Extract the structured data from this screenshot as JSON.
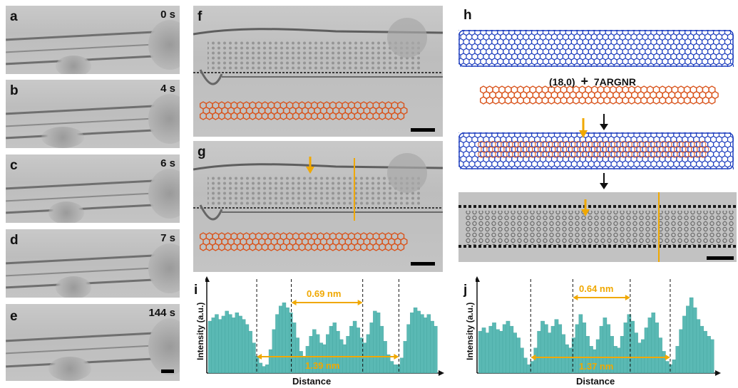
{
  "panels": {
    "a": {
      "label": "a",
      "time": "0 s"
    },
    "b": {
      "label": "b",
      "time": "4 s"
    },
    "c": {
      "label": "c",
      "time": "6 s"
    },
    "d": {
      "label": "d",
      "time": "7 s"
    },
    "e": {
      "label": "e",
      "time": "144 s"
    },
    "f": {
      "label": "f"
    },
    "g": {
      "label": "g"
    },
    "h": {
      "label": "h",
      "formula_left": "(18,0)",
      "formula_plus": "+",
      "formula_right": "7ARGNR"
    },
    "i": {
      "label": "i",
      "ylabel": "Intensity (a.u.)",
      "xlabel": "Distance",
      "dim_small": "0.69 nm",
      "dim_large": "1.39 nm"
    },
    "j": {
      "label": "j",
      "ylabel": "Intensity (a.u.)",
      "xlabel": "Distance",
      "dim_small": "0.64 nm",
      "dim_large": "1.37 nm"
    }
  },
  "colors": {
    "nanotube": "#1f3fbf",
    "ribbon": "#d9541c",
    "arrow": "#f0a800",
    "profile_fill": "#5ab9b4",
    "profile_stroke": "#3a9a95"
  },
  "chart_data": [
    {
      "type": "bar",
      "title": "",
      "xlabel": "Distance",
      "ylabel": "Intensity (a.u.)",
      "values": [
        0.62,
        0.66,
        0.7,
        0.64,
        0.68,
        0.74,
        0.7,
        0.66,
        0.72,
        0.68,
        0.64,
        0.58,
        0.5,
        0.36,
        0.2,
        0.12,
        0.08,
        0.1,
        0.28,
        0.52,
        0.7,
        0.8,
        0.84,
        0.78,
        0.72,
        0.6,
        0.42,
        0.26,
        0.2,
        0.32,
        0.44,
        0.52,
        0.46,
        0.36,
        0.34,
        0.46,
        0.56,
        0.6,
        0.5,
        0.4,
        0.34,
        0.44,
        0.56,
        0.62,
        0.54,
        0.42,
        0.36,
        0.46,
        0.6,
        0.74,
        0.72,
        0.56,
        0.38,
        0.22,
        0.14,
        0.1,
        0.1,
        0.18,
        0.38,
        0.58,
        0.72,
        0.78,
        0.74,
        0.7,
        0.66,
        0.7,
        0.62,
        0.56
      ]
    },
    {
      "type": "bar",
      "title": "",
      "xlabel": "Distance",
      "ylabel": "Intensity (a.u.)",
      "values": [
        0.5,
        0.54,
        0.48,
        0.56,
        0.6,
        0.52,
        0.5,
        0.58,
        0.62,
        0.56,
        0.48,
        0.42,
        0.3,
        0.18,
        0.1,
        0.14,
        0.3,
        0.5,
        0.62,
        0.58,
        0.48,
        0.56,
        0.64,
        0.58,
        0.46,
        0.34,
        0.3,
        0.42,
        0.58,
        0.7,
        0.6,
        0.44,
        0.32,
        0.28,
        0.4,
        0.56,
        0.66,
        0.58,
        0.44,
        0.32,
        0.3,
        0.44,
        0.6,
        0.7,
        0.62,
        0.48,
        0.36,
        0.4,
        0.54,
        0.66,
        0.72,
        0.6,
        0.42,
        0.26,
        0.14,
        0.1,
        0.16,
        0.32,
        0.52,
        0.68,
        0.8,
        0.9,
        0.78,
        0.64,
        0.56,
        0.5,
        0.44,
        0.4
      ]
    }
  ]
}
